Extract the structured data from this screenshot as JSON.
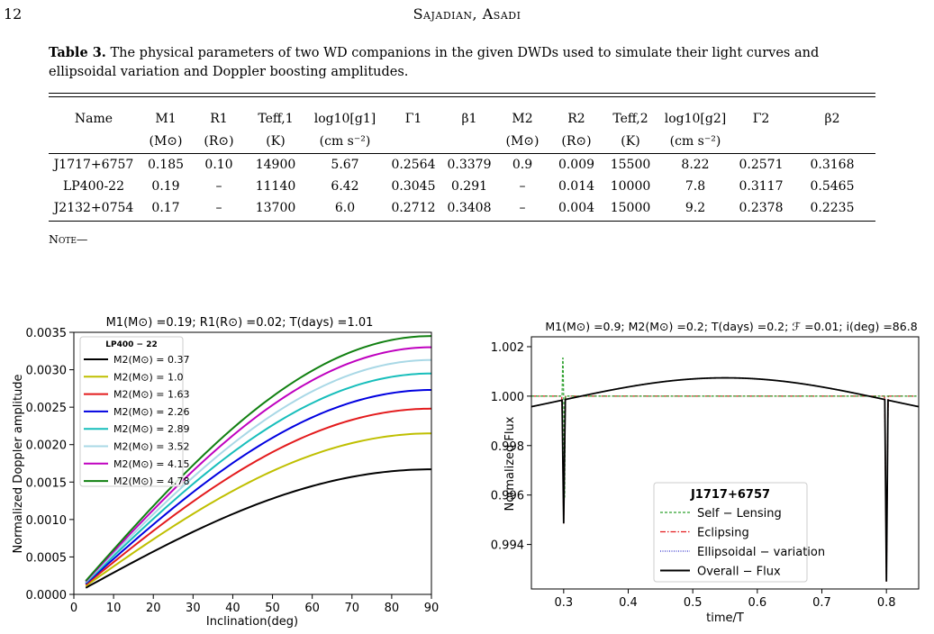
{
  "page": {
    "number": "12",
    "running_head": "Sajadian, Asadi"
  },
  "table": {
    "caption_label": "Table 3.",
    "caption_text": "The physical parameters of two WD companions in the given DWDs used to simulate their light curves and ellipsoidal variation and Doppler boosting amplitudes.",
    "headers": [
      "Name",
      "M1",
      "R1",
      "Teff,1",
      "log10[g1]",
      "Γ1",
      "β1",
      "M2",
      "R2",
      "Teff,2",
      "log10[g2]",
      "Γ2",
      "β2"
    ],
    "units": [
      "",
      "(M⊙)",
      "(R⊙)",
      "(K)",
      "(cm s⁻²)",
      "",
      "",
      "(M⊙)",
      "(R⊙)",
      "(K)",
      "(cm s⁻²)",
      "",
      ""
    ],
    "rows": [
      [
        "J1717+6757",
        "0.185",
        "0.10",
        "14900",
        "5.67",
        "0.2564",
        "0.3379",
        "0.9",
        "0.009",
        "15500",
        "8.22",
        "0.2571",
        "0.3168"
      ],
      [
        "LP400-22",
        "0.19",
        "–",
        "11140",
        "6.42",
        "0.3045",
        "0.291",
        "–",
        "0.014",
        "10000",
        "7.8",
        "0.3117",
        "0.5465"
      ],
      [
        "J2132+0754",
        "0.17",
        "–",
        "13700",
        "6.0",
        "0.2712",
        "0.3408",
        "–",
        "0.004",
        "15000",
        "9.2",
        "0.2378",
        "0.2235"
      ]
    ],
    "note": "Note—"
  },
  "chart_data": [
    {
      "type": "line",
      "title": "M1(M⊙) =0.19;  R1(R⊙) =0.02;  T(days) =1.01",
      "xlabel": "Inclination(deg)",
      "ylabel": "Normalized Doppler amplitude",
      "xlim": [
        0,
        90
      ],
      "ylim": [
        0,
        0.0035
      ],
      "xticks": [
        "0",
        "10",
        "20",
        "30",
        "40",
        "50",
        "60",
        "70",
        "80",
        "90"
      ],
      "yticks": [
        "0.0000",
        "0.0005",
        "0.0010",
        "0.0015",
        "0.0020",
        "0.0025",
        "0.0030",
        "0.0035"
      ],
      "legend_title": "LP400 − 22",
      "legend_position": "top-left",
      "x_start": 3,
      "series": [
        {
          "name": "M2(M⊙) =  0.37",
          "amplitude": 0.00167,
          "color": "#000000"
        },
        {
          "name": "M2(M⊙) =  1.0",
          "amplitude": 0.00215,
          "color": "#bfbf00"
        },
        {
          "name": "M2(M⊙) =  1.63",
          "amplitude": 0.00248,
          "color": "#e31a1c"
        },
        {
          "name": "M2(M⊙) =  2.26",
          "amplitude": 0.00273,
          "color": "#0000e0"
        },
        {
          "name": "M2(M⊙) =  2.89",
          "amplitude": 0.00295,
          "color": "#17bebb"
        },
        {
          "name": "M2(M⊙) =  3.52",
          "amplitude": 0.00313,
          "color": "#a9d8e6"
        },
        {
          "name": "M2(M⊙) =  4.15",
          "amplitude": 0.0033,
          "color": "#bf00bf"
        },
        {
          "name": "M2(M⊙) =  4.78",
          "amplitude": 0.00345,
          "color": "#118011"
        }
      ]
    },
    {
      "type": "line",
      "title": "M1(M⊙) =0.9;  M2(M⊙) =0.2;  T(days) =0.2;  ℱ =0.01;  i(deg) =86.8",
      "xlabel": "time/T",
      "ylabel": "Normalized Flux",
      "xlim": [
        0.25,
        0.85
      ],
      "ylim": [
        0.9922,
        1.0024
      ],
      "xticks": [
        "0.3",
        "0.4",
        "0.5",
        "0.6",
        "0.7",
        "0.8"
      ],
      "yticks": [
        "0.994",
        "0.996",
        "0.998",
        "1.000",
        "1.002"
      ],
      "legend_title": "J1717+6757",
      "legend_position": "lower-center",
      "ellipsoidal": {
        "mean": 0.99985,
        "half_amplitude": 0.00089,
        "phase_max": 0.55
      },
      "self_lensing": {
        "x": 0.3,
        "peak": 1.00192,
        "dip": 0.9949
      },
      "eclipse_primary": {
        "x": 0.3,
        "depth": 0.99485
      },
      "eclipse_secondary": {
        "x": 0.8,
        "depth": 0.9925
      },
      "series": [
        {
          "name": "Self − Lensing",
          "color": "#2ca02c",
          "style": "dashed"
        },
        {
          "name": "Eclipsing",
          "color": "#e31a1c",
          "style": "dashdot"
        },
        {
          "name": "Ellipsoidal − variation",
          "color": "#3333cc",
          "style": "dotted"
        },
        {
          "name": "Overall − Flux",
          "color": "#000000",
          "style": "solid"
        }
      ]
    }
  ]
}
